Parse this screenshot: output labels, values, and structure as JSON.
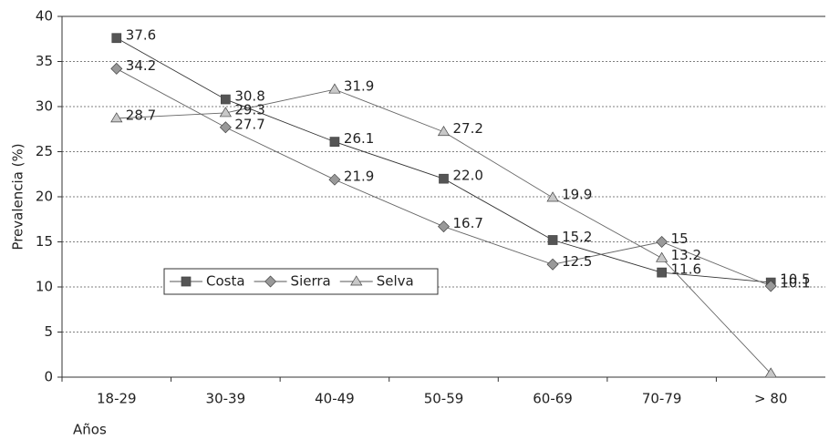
{
  "chart_data": {
    "type": "line",
    "y_label": "Prevalencia (%)",
    "x_label": "Años",
    "categories": [
      "18-29",
      "30-39",
      "40-49",
      "50-59",
      "60-69",
      "70-79",
      "> 80"
    ],
    "series": [
      {
        "name": "Costa",
        "color": "#555555",
        "marker": "square",
        "values": [
          37.6,
          30.8,
          26.1,
          22.0,
          15.2,
          11.6,
          10.5
        ],
        "value_labels": [
          "37.6",
          "30.8",
          "26.1",
          "22.0",
          "15.2",
          "11.6",
          "10.5"
        ]
      },
      {
        "name": "Sierra",
        "color": "#999999",
        "marker": "diamond",
        "values": [
          34.2,
          27.7,
          21.9,
          16.7,
          12.5,
          15,
          10.1
        ],
        "value_labels": [
          "34.2",
          "27.7",
          "21.9",
          "16.7",
          "12.5",
          "15",
          "10.1"
        ]
      },
      {
        "name": "Selva",
        "color": "#c8c8c8",
        "marker": "triangle",
        "values": [
          28.7,
          29.3,
          31.9,
          27.2,
          19.9,
          13.2,
          0.4
        ],
        "value_labels": [
          "28.7",
          "29.3",
          "31.9",
          "27.2",
          "19.9",
          "13.2",
          null
        ]
      }
    ],
    "ylim": [
      0,
      40
    ],
    "yticks": [
      0,
      5,
      10,
      15,
      20,
      25,
      30,
      35,
      40
    ],
    "grid": true
  }
}
